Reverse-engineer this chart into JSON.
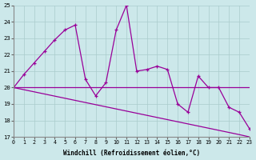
{
  "xlabel": "Windchill (Refroidissement éolien,°C)",
  "bg_color": "#cce8ea",
  "grid_color": "#aacccc",
  "line_color": "#990099",
  "x_values": [
    0,
    1,
    2,
    3,
    4,
    5,
    6,
    7,
    8,
    9,
    10,
    11,
    12,
    13,
    14,
    15,
    16,
    17,
    18,
    19,
    20,
    21,
    22,
    23
  ],
  "temp_line": [
    20.0,
    20.8,
    21.5,
    22.2,
    22.9,
    23.5,
    23.8,
    20.5,
    19.5,
    20.3,
    23.5,
    25.0,
    21.0,
    21.1,
    21.3,
    21.1,
    19.0,
    18.5,
    20.7,
    20.0,
    20.0,
    18.8,
    18.5,
    17.5
  ],
  "flat_line": [
    20.0,
    20.0,
    20.0,
    20.0,
    20.0,
    20.0,
    20.0,
    20.0,
    20.0,
    20.0,
    20.0,
    20.0,
    20.0,
    20.0,
    20.0,
    20.0,
    20.0,
    20.0,
    20.0,
    20.0,
    20.0,
    20.0,
    20.0,
    20.0
  ],
  "diag_line": [
    20.0,
    19.87,
    19.74,
    19.61,
    19.48,
    19.35,
    19.22,
    19.09,
    18.96,
    18.83,
    18.7,
    18.57,
    18.44,
    18.31,
    18.18,
    18.05,
    17.92,
    17.79,
    17.66,
    17.53,
    17.4,
    17.27,
    17.14,
    17.0
  ],
  "ylim": [
    17,
    25
  ],
  "xlim": [
    0,
    23
  ],
  "yticks": [
    17,
    18,
    19,
    20,
    21,
    22,
    23,
    24,
    25
  ],
  "xticks": [
    0,
    1,
    2,
    3,
    4,
    5,
    6,
    7,
    8,
    9,
    10,
    11,
    12,
    13,
    14,
    15,
    16,
    17,
    18,
    19,
    20,
    21,
    22,
    23
  ]
}
